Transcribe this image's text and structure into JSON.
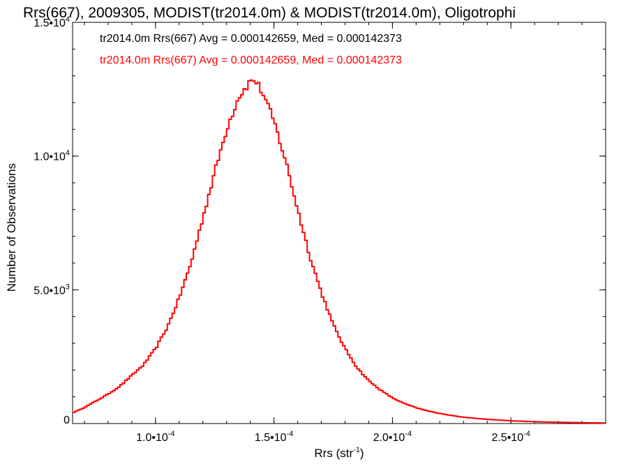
{
  "chart_data": {
    "type": "line",
    "title": "Rrs(667), 2009305, MODIST(tr2014.0m) & MODIST(tr2014.0m), Oligotrophi",
    "xlabel": {
      "base": "Rrs (str",
      "sup": "-1",
      "end": ")"
    },
    "ylabel": "Number of Observations",
    "xlim": [
      6.5e-05,
      0.00029
    ],
    "ylim": [
      0,
      15000
    ],
    "x_ticks": [
      {
        "value": 0.0001,
        "mant": "1.0•10",
        "exp": "-4"
      },
      {
        "value": 0.00015,
        "mant": "1.5•10",
        "exp": "-4"
      },
      {
        "value": 0.0002,
        "mant": "2.0•10",
        "exp": "-4"
      },
      {
        "value": 0.00025,
        "mant": "2.5•10",
        "exp": "-4"
      }
    ],
    "y_ticks": [
      {
        "value": 0,
        "mant": "0",
        "exp": ""
      },
      {
        "value": 5000,
        "mant": "5.0•10",
        "exp": "3"
      },
      {
        "value": 10000,
        "mant": "1.0•10",
        "exp": "4"
      },
      {
        "value": 15000,
        "mant": "1.5•10",
        "exp": "4"
      }
    ],
    "legend": [
      {
        "text": "tr2014.0m Rrs(667) Avg = 0.000142659, Med = 0.000142373",
        "color": "#000000"
      },
      {
        "text": "tr2014.0m Rrs(667) Avg = 0.000142659, Med = 0.000142373",
        "color": "#ff0000"
      }
    ],
    "legend_position": "top-left",
    "grid": false,
    "series": [
      {
        "color": "#ff0000",
        "step": true,
        "x": [
          6.5e-05,
          7e-05,
          7.5e-05,
          8e-05,
          8.5e-05,
          9e-05,
          9.5e-05,
          0.0001,
          0.000105,
          0.00011,
          0.000115,
          0.00012,
          0.000125,
          0.00013,
          0.000135,
          0.00014,
          0.000142,
          0.000145,
          0.00015,
          0.000155,
          0.00016,
          0.000165,
          0.00017,
          0.000175,
          0.00018,
          0.000185,
          0.00019,
          0.000195,
          0.0002,
          0.000205,
          0.00021,
          0.000215,
          0.00022,
          0.000225,
          0.00023,
          0.000235,
          0.00024,
          0.000245,
          0.00025,
          0.000255,
          0.00026,
          0.000265,
          0.00027,
          0.000275,
          0.00028,
          0.000285,
          0.00029
        ],
        "y": [
          400,
          600,
          850,
          1100,
          1400,
          1800,
          2200,
          2800,
          3600,
          4700,
          6000,
          7700,
          9400,
          11000,
          12200,
          12800,
          12850,
          12400,
          11300,
          9800,
          8000,
          6300,
          4900,
          3700,
          2800,
          2100,
          1600,
          1250,
          960,
          750,
          590,
          470,
          380,
          300,
          240,
          195,
          160,
          130,
          105,
          85,
          70,
          57,
          47,
          38,
          31,
          26,
          20
        ]
      }
    ]
  }
}
